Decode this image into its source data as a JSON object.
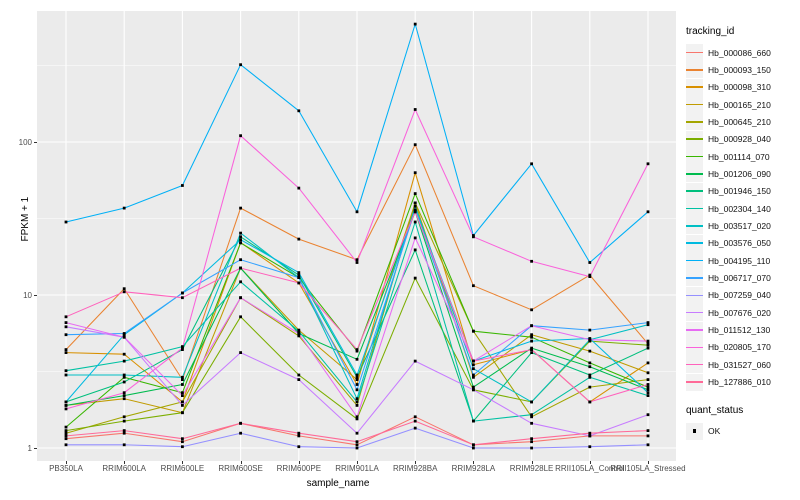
{
  "chart_data": {
    "type": "line",
    "title": "",
    "xlabel": "sample_name",
    "ylabel": "FPKM + 1",
    "y_scale": "log10",
    "ylim": [
      0.93,
      700
    ],
    "y_ticks": [
      "100",
      "10",
      "1"
    ],
    "y_tick_values": [
      100,
      10,
      1
    ],
    "y_minor_values": [
      316.23,
      31.623,
      3.1623
    ],
    "grid": "ggplot-grey-panel-white-gridlines",
    "legend_position": "right",
    "legend_title": "tracking_id",
    "point_marker": "small black square",
    "point_color": "#000000",
    "categories": [
      "PB350LA",
      "RRIM600LA",
      "RRIM600LE",
      "RRIM600SE",
      "RRIM600PE",
      "RRIM901LA",
      "RRIM928BA",
      "RRIM928LA",
      "RRIM928LE",
      "RRII105LA_Control",
      "RRII105LA_Stressed"
    ],
    "series": [
      {
        "name": "Hb_000086_660",
        "color": "#F8766D",
        "values": [
          1.15,
          1.25,
          1.1,
          1.45,
          1.2,
          1.05,
          1.6,
          1.05,
          1.1,
          1.2,
          1.2
        ]
      },
      {
        "name": "Hb_000093_150",
        "color": "#EA8331",
        "values": [
          4.4,
          11,
          2.8,
          37,
          23.2,
          17,
          96,
          11.5,
          8,
          13.5,
          4.8
        ]
      },
      {
        "name": "Hb_000098_310",
        "color": "#D89000",
        "values": [
          4.2,
          4.1,
          2.0,
          22,
          12,
          2.6,
          63,
          3.5,
          4.4,
          2.0,
          3.6
        ]
      },
      {
        "name": "Hb_000165_210",
        "color": "#C09B00",
        "values": [
          1.9,
          2.1,
          1.7,
          15,
          5.9,
          2.8,
          40,
          2.9,
          5.5,
          4.3,
          3.1
        ]
      },
      {
        "name": "Hb_000645_210",
        "color": "#A3A500",
        "values": [
          1.25,
          1.6,
          2.0,
          9.6,
          5.4,
          1.9,
          40,
          5.8,
          1.6,
          2.5,
          2.8
        ]
      },
      {
        "name": "Hb_000928_040",
        "color": "#7CAE00",
        "values": [
          1.3,
          1.5,
          1.7,
          7.2,
          3.0,
          1.55,
          12.9,
          2.4,
          2.0,
          5.0,
          4.7
        ]
      },
      {
        "name": "Hb_001114_070",
        "color": "#39B600",
        "values": [
          1.37,
          2.9,
          2.3,
          21.9,
          13,
          4.3,
          46,
          5.8,
          5.3,
          3.6,
          2.5
        ]
      },
      {
        "name": "Hb_001206_090",
        "color": "#00BB4E",
        "values": [
          1.9,
          2.2,
          2.6,
          15,
          5.6,
          3.8,
          35,
          2.5,
          4.5,
          3.4,
          2.4
        ]
      },
      {
        "name": "Hb_001946_150",
        "color": "#00BF7D",
        "values": [
          2.0,
          2.7,
          4.4,
          24,
          13.5,
          2.9,
          19.7,
          1.5,
          4.2,
          3.0,
          4.5
        ]
      },
      {
        "name": "Hb_002304_140",
        "color": "#00C1A3",
        "values": [
          3.2,
          3.7,
          4.6,
          12.2,
          5.8,
          2.0,
          30,
          1.5,
          1.65,
          2.9,
          2.2
        ]
      },
      {
        "name": "Hb_003517_020",
        "color": "#00BFC4",
        "values": [
          3.0,
          3.0,
          2.9,
          25.4,
          13,
          2.1,
          38,
          3.3,
          2.0,
          5.1,
          6.4
        ]
      },
      {
        "name": "Hb_003576_050",
        "color": "#00BAE0",
        "values": [
          2.0,
          5.5,
          10.3,
          23,
          14,
          3.0,
          36,
          3.7,
          5.0,
          5.2,
          2.3
        ]
      },
      {
        "name": "Hb_004195_110",
        "color": "#00B0F6",
        "values": [
          30,
          37,
          52,
          320,
          160,
          35,
          590,
          24.5,
          72,
          16.3,
          35
        ]
      },
      {
        "name": "Hb_006717_070",
        "color": "#35A2FF",
        "values": [
          5.5,
          5.6,
          10.3,
          17,
          13,
          2.4,
          36,
          3.0,
          6.3,
          5.9,
          6.6
        ]
      },
      {
        "name": "Hb_007259_040",
        "color": "#9590FF",
        "values": [
          1.05,
          1.05,
          1.02,
          1.25,
          1.02,
          1.0,
          1.35,
          1.0,
          1.0,
          1.02,
          1.05
        ]
      },
      {
        "name": "Hb_007676_020",
        "color": "#C77CFF",
        "values": [
          6.2,
          5.3,
          1.9,
          4.2,
          2.8,
          1.25,
          3.7,
          2.4,
          1.45,
          1.2,
          1.65
        ]
      },
      {
        "name": "Hb_011512_130",
        "color": "#E76BF3",
        "values": [
          6.6,
          5.3,
          2.2,
          9.6,
          5.6,
          1.6,
          23.6,
          3.7,
          6.3,
          5.1,
          5.0
        ]
      },
      {
        "name": "Hb_020805_170",
        "color": "#FA62DB",
        "values": [
          1.8,
          2.3,
          4.5,
          110,
          50,
          16.3,
          163,
          24,
          16.6,
          13.2,
          72
        ]
      },
      {
        "name": "Hb_031527_060",
        "color": "#FF62BC",
        "values": [
          7.2,
          10.5,
          9.6,
          15,
          12,
          4.4,
          35,
          3.7,
          4.4,
          2.0,
          2.6
        ]
      },
      {
        "name": "Hb_127886_010",
        "color": "#FF6A98",
        "values": [
          1.2,
          1.3,
          1.15,
          1.45,
          1.25,
          1.1,
          1.5,
          1.05,
          1.15,
          1.25,
          1.3
        ]
      }
    ],
    "legend2": {
      "title": "quant_status",
      "items": [
        {
          "label": "OK",
          "marker_color": "#000000"
        }
      ]
    }
  },
  "style": {
    "panel_bg": "#EBEBEB",
    "grid_color": "#FFFFFF",
    "tick_text_color": "#4D4D4D",
    "key_bg": "#F2F2F2"
  }
}
